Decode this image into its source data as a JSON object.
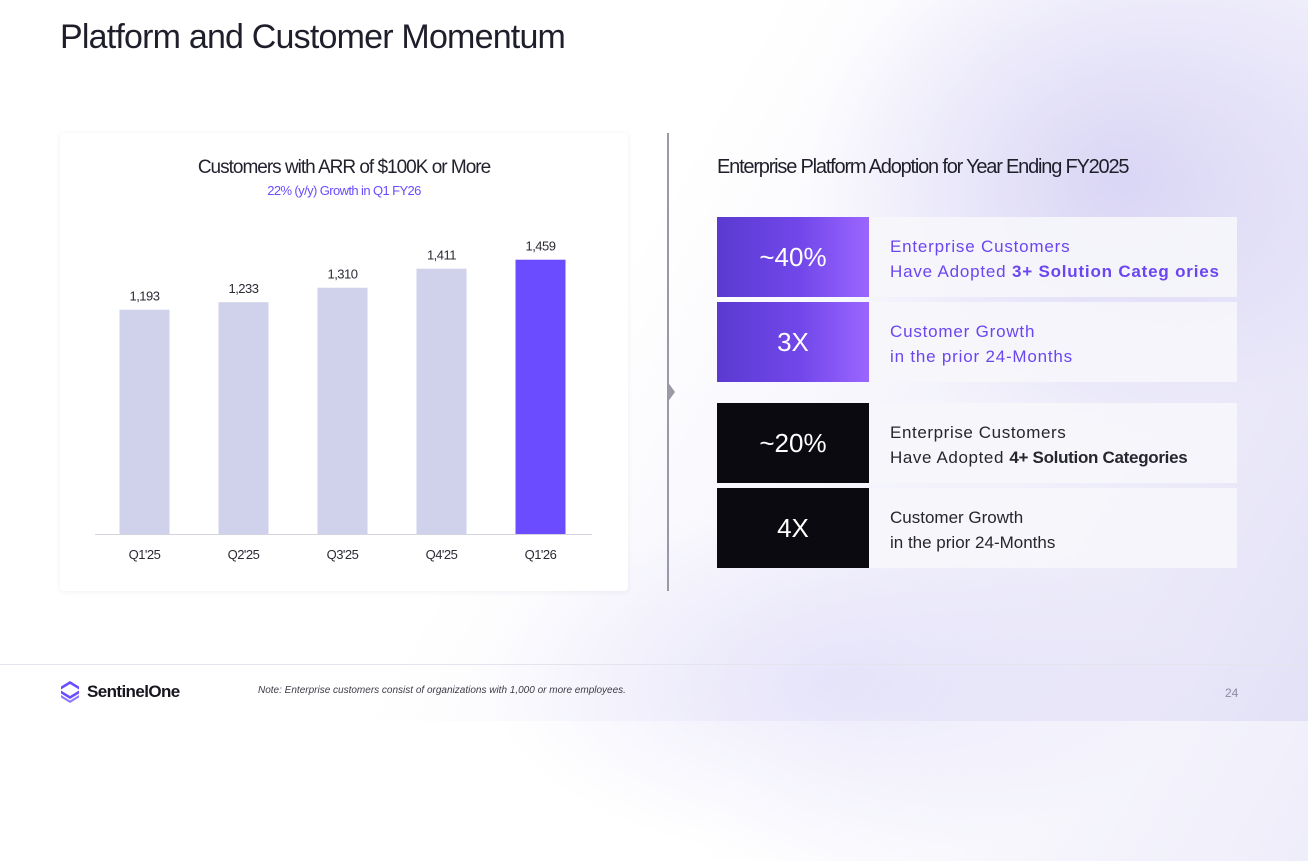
{
  "title": "Platform and Customer Momentum",
  "chart_data": {
    "type": "bar",
    "title": "Customers with ARR of $100K or More",
    "subtitle": "22% (y/y) Growth in Q1 FY26",
    "categories": [
      "Q1'25",
      "Q2'25",
      "Q3'25",
      "Q4'25",
      "Q1'26"
    ],
    "values": [
      1193,
      1233,
      1310,
      1411,
      1459
    ],
    "value_labels": [
      "1,193",
      "1,233",
      "1,310",
      "1,411",
      "1,459"
    ],
    "highlight_index": 4,
    "ylim": [
      0,
      1500
    ],
    "xlabel": "",
    "ylabel": "",
    "colors": {
      "default": "#cfd2ea",
      "highlight": "#6b4cff"
    }
  },
  "right_panel": {
    "title": "Enterprise Platform Adoption for Year Ending FY2025",
    "stats": [
      {
        "value": "~40%",
        "line1": "Enterprise Customers",
        "line2_prefix": "Have Adopted ",
        "line2_bold": "3+ Solution Categ ories"
      },
      {
        "value": "3X",
        "line1": "Customer Growth",
        "line2_prefix": "in the prior 24-Months",
        "line2_bold": ""
      },
      {
        "value": "~20%",
        "line1": "Enterprise Customers",
        "line2_prefix": "Have Adopted ",
        "line2_bold": "4+ Solution Categories"
      },
      {
        "value": "4X",
        "line1": "Customer Growth",
        "line2_prefix": "in the prior 24-Months",
        "line2_bold": ""
      }
    ]
  },
  "footer": {
    "brand": "SentinelOne",
    "note": "Note: Enterprise customers consist of organizations with 1,000 or more employees.",
    "page_number": "24"
  }
}
